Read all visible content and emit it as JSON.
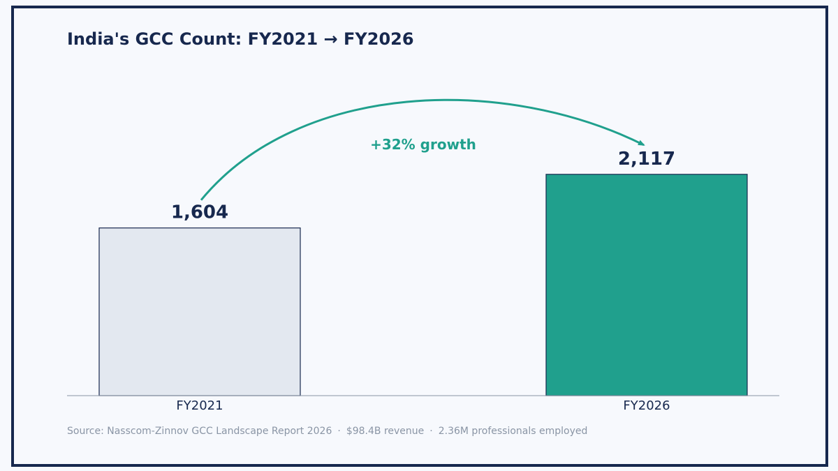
{
  "colors": {
    "frame": "#17284e",
    "text_dark": "#17284e",
    "accent": "#20a08d",
    "bar_light": "#e3e8f0",
    "muted": "#8a95a5",
    "background": "#f7f9fd"
  },
  "chart_data": {
    "type": "bar",
    "title": "India's GCC Count: FY2021 → FY2026",
    "categories": [
      "FY2021",
      "FY2026"
    ],
    "values": [
      1604,
      2117
    ],
    "value_labels": [
      "1,604",
      "2,117"
    ],
    "bar_colors": [
      "#e3e8f0",
      "#20a08d"
    ],
    "xlabel": "",
    "ylabel": "",
    "ylim": [
      0,
      2850
    ],
    "grid": false,
    "annotation": {
      "text": "+32% growth",
      "from": "FY2021",
      "to": "FY2026",
      "style": "curved-arrow"
    }
  },
  "source": {
    "text": "Source: Nasscom-Zinnov GCC Landscape Report 2026",
    "sep1": "·",
    "revenue": "$98.4B revenue",
    "sep2": "·",
    "employees": "2.36M professionals employed"
  }
}
